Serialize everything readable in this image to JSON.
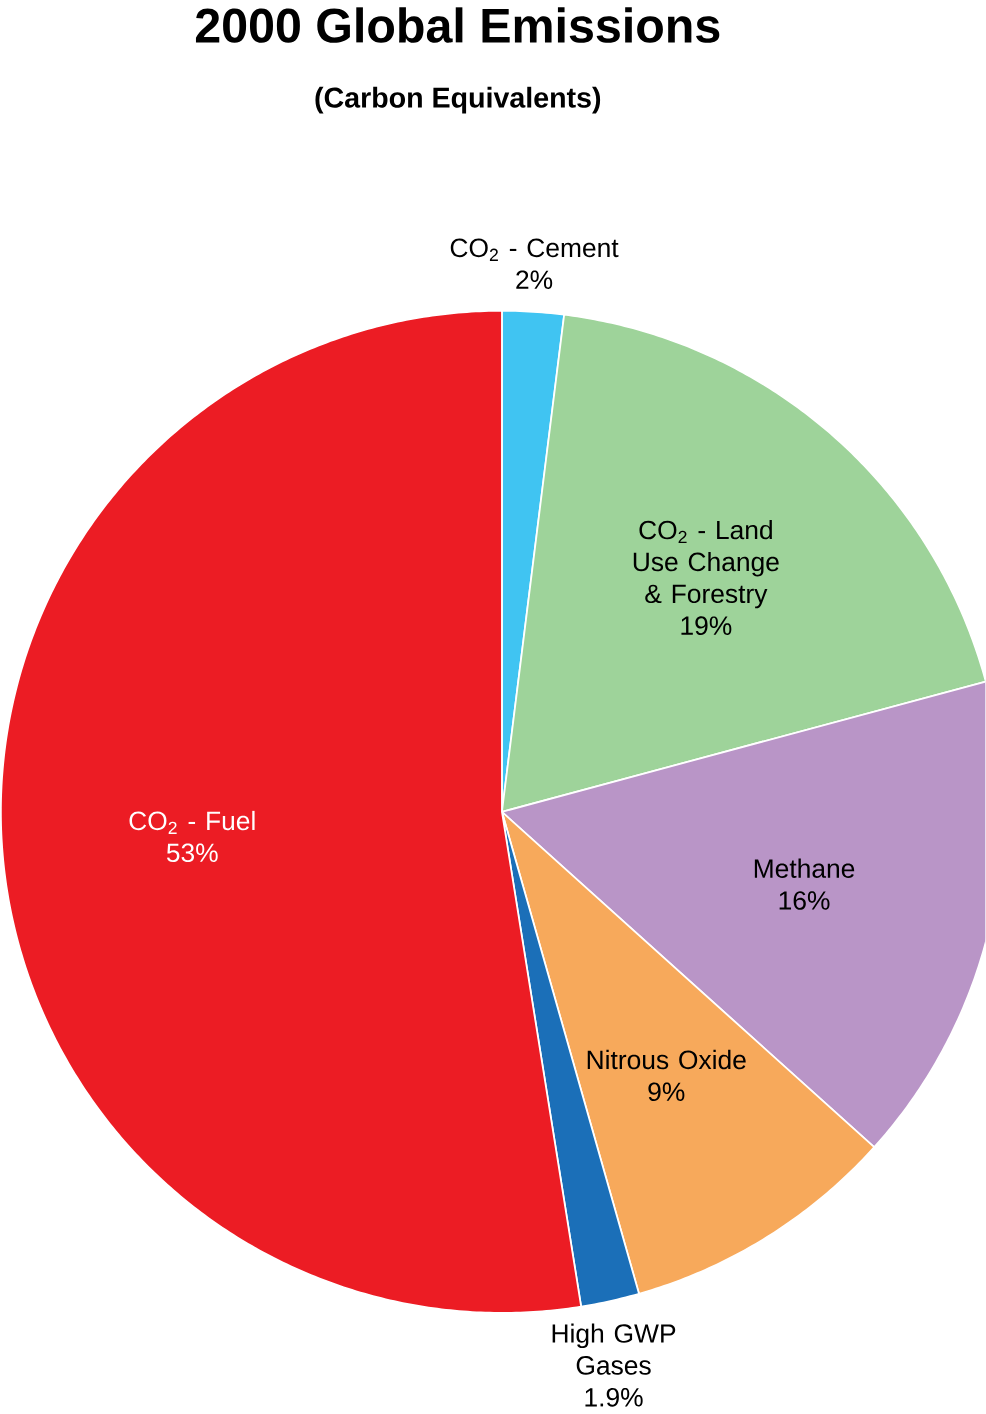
{
  "chart_data": {
    "type": "pie",
    "title": "2000 Global Emissions",
    "subtitle": "(Carbon Equivalents)",
    "categories": [
      "CO$_{2}$ - Cement",
      "CO$_{2}$ - Land Use Change & Forestry",
      "Methane",
      "Nitrous Oxide",
      "High GWP Gases",
      "CO$_{2}$ - Fuel"
    ],
    "values": [
      2,
      19,
      16,
      9,
      1.9,
      53
    ],
    "value_labels": [
      "2%",
      "19%",
      "16%",
      "9%",
      "1.9%",
      "53%"
    ],
    "colors": [
      "#40c4f2",
      "#9ed39a",
      "#b995c7",
      "#f7a95b",
      "#1b6fb8",
      "#ec1c24"
    ]
  }
}
